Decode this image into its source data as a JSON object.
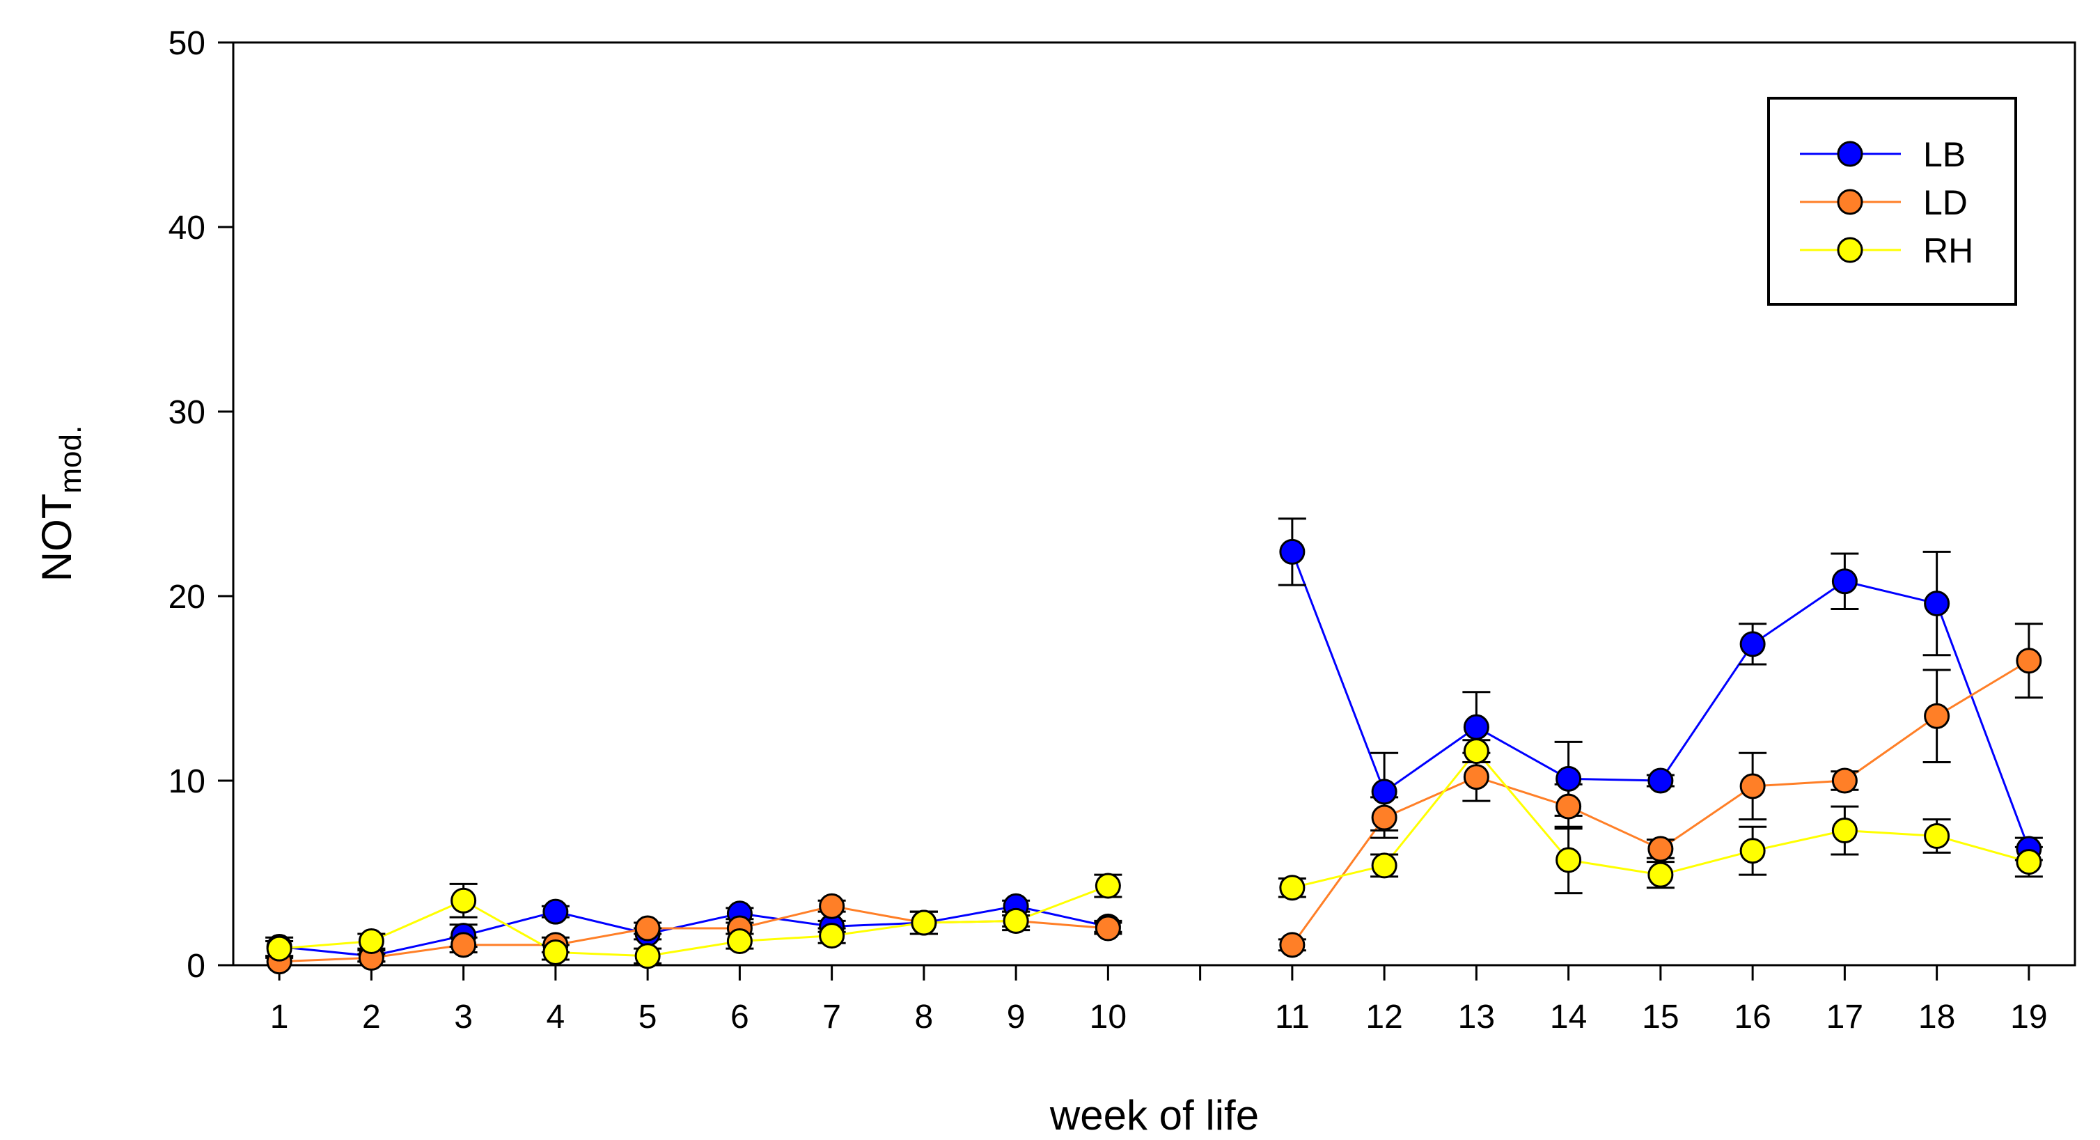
{
  "chart_data": {
    "type": "line",
    "title": "",
    "xlabel": "week of life",
    "ylabel": {
      "main": "NOT",
      "subscript": "mod."
    },
    "ylim": [
      0,
      50
    ],
    "yticks": [
      "0",
      "10",
      "20",
      "30",
      "40",
      "50"
    ],
    "ytick_values": [
      0,
      10,
      20,
      30,
      40,
      50
    ],
    "xticks": [
      "1",
      "2",
      "3",
      "4",
      "5",
      "6",
      "7",
      "8",
      "9",
      "10",
      "11",
      "12",
      "13",
      "14",
      "15",
      "16",
      "17",
      "18",
      "19"
    ],
    "x_slots": [
      1,
      2,
      3,
      4,
      5,
      6,
      7,
      8,
      9,
      10,
      12,
      13,
      14,
      15,
      16,
      17,
      18,
      19,
      20
    ],
    "x_range": [
      0.5,
      20.5
    ],
    "segments": [
      [
        0,
        9
      ],
      [
        10,
        18
      ]
    ],
    "legend_position": "top-right",
    "series": [
      {
        "name": "LB",
        "color": "#0000ff",
        "values": [
          1.0,
          0.5,
          1.6,
          2.9,
          1.7,
          2.8,
          2.1,
          2.3,
          3.2,
          2.1,
          22.4,
          9.4,
          12.9,
          10.1,
          10.0,
          17.4,
          20.8,
          19.6,
          6.3
        ],
        "errors": [
          0.5,
          0.3,
          0.6,
          0.3,
          0.3,
          0.3,
          0.3,
          0.6,
          0.3,
          0.3,
          1.8,
          2.1,
          1.9,
          2.0,
          0.3,
          1.1,
          1.5,
          2.8,
          0.6
        ]
      },
      {
        "name": "LD",
        "color": "#ff7f27",
        "values": [
          0.2,
          0.4,
          1.1,
          1.1,
          2.0,
          2.0,
          3.2,
          2.3,
          2.4,
          2.0,
          1.1,
          8.0,
          10.2,
          8.6,
          6.3,
          9.7,
          10.0,
          13.5,
          16.5
        ],
        "errors": [
          0.2,
          0.2,
          0.4,
          0.4,
          0.3,
          0.3,
          0.3,
          0.6,
          0.3,
          0.3,
          0.3,
          1.1,
          1.3,
          1.2,
          0.5,
          1.8,
          0.5,
          2.5,
          2.0
        ]
      },
      {
        "name": "RH",
        "color": "#ffff00",
        "values": [
          0.9,
          1.3,
          3.5,
          0.7,
          0.5,
          1.3,
          1.6,
          2.3,
          2.4,
          4.3,
          4.2,
          5.4,
          11.6,
          5.7,
          4.9,
          6.2,
          7.3,
          7.0,
          5.6
        ],
        "errors": [
          0.4,
          0.4,
          0.9,
          0.4,
          0.4,
          0.4,
          0.4,
          0.6,
          0.5,
          0.6,
          0.5,
          0.6,
          0.6,
          1.8,
          0.7,
          1.3,
          1.3,
          0.9,
          0.8
        ]
      }
    ]
  }
}
